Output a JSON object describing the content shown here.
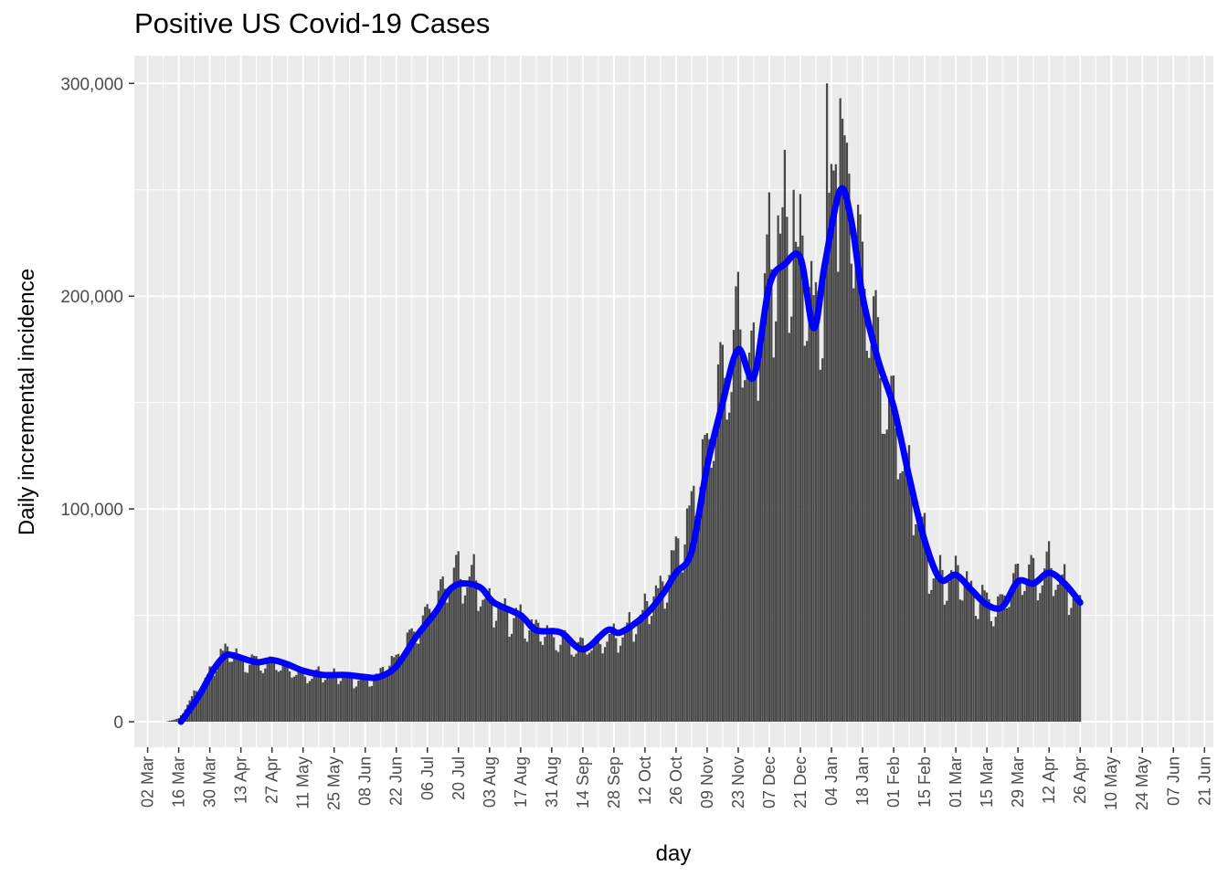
{
  "chart_data": {
    "type": "bar",
    "title": "Positive US Covid-19 Cases",
    "xlabel": "day",
    "ylabel": "Daily incremental incidence",
    "x_axis": {
      "type": "date",
      "start": "2020-02-25",
      "end": "2021-06-25",
      "tick_labels": [
        "02 Mar",
        "16 Mar",
        "30 Mar",
        "13 Apr",
        "27 Apr",
        "11 May",
        "25 May",
        "08 Jun",
        "22 Jun",
        "06 Jul",
        "20 Jul",
        "03 Aug",
        "17 Aug",
        "31 Aug",
        "14 Sep",
        "28 Sep",
        "12 Oct",
        "26 Oct",
        "09 Nov",
        "23 Nov",
        "07 Dec",
        "21 Dec",
        "04 Jan",
        "18 Jan",
        "01 Feb",
        "15 Feb",
        "01 Mar",
        "15 Mar",
        "29 Mar",
        "12 Apr",
        "26 Apr",
        "10 May",
        "24 May",
        "07 Jun",
        "21 Jun"
      ],
      "tick_dates": [
        "2020-03-02",
        "2020-03-16",
        "2020-03-30",
        "2020-04-13",
        "2020-04-27",
        "2020-05-11",
        "2020-05-25",
        "2020-06-08",
        "2020-06-22",
        "2020-07-06",
        "2020-07-20",
        "2020-08-03",
        "2020-08-17",
        "2020-08-31",
        "2020-09-14",
        "2020-09-28",
        "2020-10-12",
        "2020-10-26",
        "2020-11-09",
        "2020-11-23",
        "2020-12-07",
        "2020-12-21",
        "2021-01-04",
        "2021-01-18",
        "2021-02-01",
        "2021-02-15",
        "2021-03-01",
        "2021-03-15",
        "2021-03-29",
        "2021-04-12",
        "2021-04-26",
        "2021-05-10",
        "2021-05-24",
        "2021-06-07",
        "2021-06-21"
      ]
    },
    "y_axis": {
      "ylim": [
        -12000,
        313000
      ],
      "ticks": [
        0,
        100000,
        200000,
        300000
      ],
      "tick_labels": [
        "0",
        "100,000",
        "200,000",
        "300,000"
      ]
    },
    "grid": true,
    "bar_color": "#474747",
    "series": [
      {
        "type": "bar",
        "start_date": "2020-03-10",
        "end_date": "2021-04-26",
        "anchors_date": [
          [
            "2020-03-10",
            0
          ],
          [
            "2020-03-16",
            1500
          ],
          [
            "2020-03-20",
            8000
          ],
          [
            "2020-03-25",
            16000
          ],
          [
            "2020-03-30",
            22000
          ],
          [
            "2020-04-04",
            33000
          ],
          [
            "2020-04-10",
            33000
          ],
          [
            "2020-04-13",
            28000
          ],
          [
            "2020-04-27",
            28000
          ],
          [
            "2020-05-11",
            22000
          ],
          [
            "2020-05-25",
            22000
          ],
          [
            "2020-06-08",
            19000
          ],
          [
            "2020-06-14",
            22000
          ],
          [
            "2020-06-22",
            30000
          ],
          [
            "2020-07-06",
            50000
          ],
          [
            "2020-07-14",
            65000
          ],
          [
            "2020-07-20",
            70000
          ],
          [
            "2020-07-27",
            66000
          ],
          [
            "2020-08-03",
            55000
          ],
          [
            "2020-08-17",
            48000
          ],
          [
            "2020-08-31",
            40000
          ],
          [
            "2020-09-14",
            35000
          ],
          [
            "2020-09-28",
            40000
          ],
          [
            "2020-10-05",
            43000
          ],
          [
            "2020-10-12",
            53000
          ],
          [
            "2020-10-19",
            62000
          ],
          [
            "2020-10-26",
            77000
          ],
          [
            "2020-11-02",
            100000
          ],
          [
            "2020-11-09",
            130000
          ],
          [
            "2020-11-16",
            160000
          ],
          [
            "2020-11-23",
            185000
          ],
          [
            "2020-11-30",
            168000
          ],
          [
            "2020-12-07",
            215000
          ],
          [
            "2020-12-14",
            225000
          ],
          [
            "2020-12-21",
            220000
          ],
          [
            "2020-12-28",
            190000
          ],
          [
            "2021-01-04",
            235000
          ],
          [
            "2021-01-08",
            270000
          ],
          [
            "2021-01-12",
            245000
          ],
          [
            "2021-01-18",
            215000
          ],
          [
            "2021-01-25",
            170000
          ],
          [
            "2021-02-01",
            140000
          ],
          [
            "2021-02-08",
            115000
          ],
          [
            "2021-02-15",
            85000
          ],
          [
            "2021-02-20",
            65000
          ],
          [
            "2021-03-01",
            70000
          ],
          [
            "2021-03-08",
            62000
          ],
          [
            "2021-03-15",
            55000
          ],
          [
            "2021-03-22",
            55000
          ],
          [
            "2021-03-29",
            70000
          ],
          [
            "2021-04-05",
            68000
          ],
          [
            "2021-04-12",
            72000
          ],
          [
            "2021-04-19",
            65000
          ],
          [
            "2021-04-26",
            52000
          ]
        ],
        "peak_values": [
          [
            "2021-01-02",
            300000
          ],
          [
            "2021-01-08",
            293000
          ],
          [
            "2021-01-06",
            262000
          ],
          [
            "2020-12-18",
            250000
          ],
          [
            "2020-12-11",
            238000
          ]
        ]
      },
      {
        "type": "line",
        "smoothed": true,
        "color": "#0000ff",
        "start_date": "2020-03-17",
        "end_date": "2021-04-26",
        "points_date": [
          [
            "2020-03-17",
            0
          ],
          [
            "2020-03-25",
            12000
          ],
          [
            "2020-04-01",
            25000
          ],
          [
            "2020-04-06",
            31000
          ],
          [
            "2020-04-10",
            31000
          ],
          [
            "2020-04-20",
            28000
          ],
          [
            "2020-04-27",
            29000
          ],
          [
            "2020-05-04",
            27000
          ],
          [
            "2020-05-11",
            24000
          ],
          [
            "2020-05-20",
            22000
          ],
          [
            "2020-05-30",
            22000
          ],
          [
            "2020-06-08",
            21000
          ],
          [
            "2020-06-14",
            21000
          ],
          [
            "2020-06-22",
            26000
          ],
          [
            "2020-07-01",
            40000
          ],
          [
            "2020-07-10",
            52000
          ],
          [
            "2020-07-16",
            62000
          ],
          [
            "2020-07-22",
            65000
          ],
          [
            "2020-07-30",
            63000
          ],
          [
            "2020-08-05",
            56000
          ],
          [
            "2020-08-17",
            50000
          ],
          [
            "2020-08-24",
            43000
          ],
          [
            "2020-09-04",
            42000
          ],
          [
            "2020-09-14",
            34000
          ],
          [
            "2020-09-25",
            43000
          ],
          [
            "2020-10-01",
            42000
          ],
          [
            "2020-10-12",
            50000
          ],
          [
            "2020-10-20",
            60000
          ],
          [
            "2020-10-26",
            70000
          ],
          [
            "2020-11-02",
            80000
          ],
          [
            "2020-11-09",
            120000
          ],
          [
            "2020-11-16",
            150000
          ],
          [
            "2020-11-23",
            175000
          ],
          [
            "2020-11-30",
            162000
          ],
          [
            "2020-12-07",
            205000
          ],
          [
            "2020-12-14",
            215000
          ],
          [
            "2020-12-21",
            218000
          ],
          [
            "2020-12-27",
            185000
          ],
          [
            "2021-01-01",
            215000
          ],
          [
            "2021-01-08",
            250000
          ],
          [
            "2021-01-13",
            235000
          ],
          [
            "2021-01-18",
            200000
          ],
          [
            "2021-01-25",
            170000
          ],
          [
            "2021-02-01",
            148000
          ],
          [
            "2021-02-08",
            115000
          ],
          [
            "2021-02-15",
            85000
          ],
          [
            "2021-02-22",
            67000
          ],
          [
            "2021-03-01",
            69000
          ],
          [
            "2021-03-08",
            62000
          ],
          [
            "2021-03-15",
            55000
          ],
          [
            "2021-03-22",
            54000
          ],
          [
            "2021-03-29",
            66000
          ],
          [
            "2021-04-05",
            65000
          ],
          [
            "2021-04-12",
            70000
          ],
          [
            "2021-04-19",
            65000
          ],
          [
            "2021-04-26",
            56000
          ]
        ]
      }
    ]
  }
}
